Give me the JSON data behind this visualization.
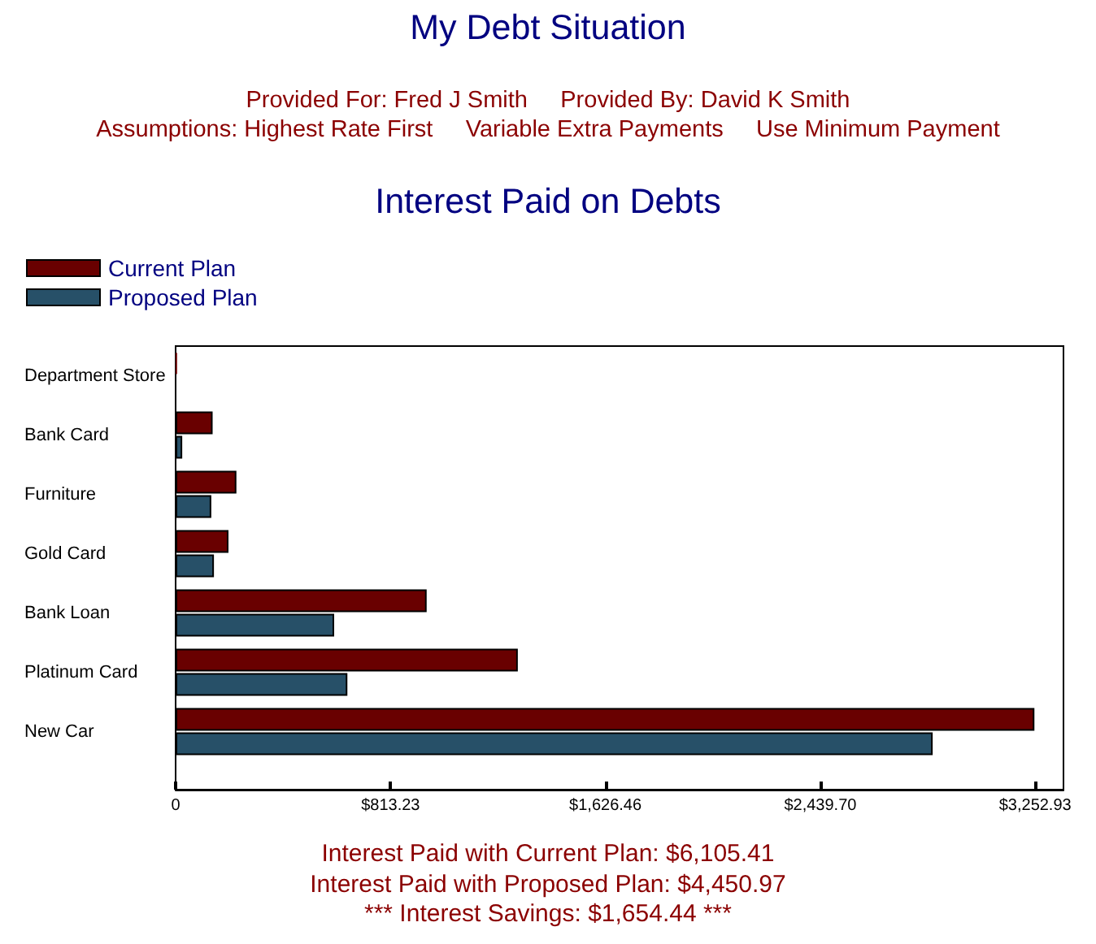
{
  "chart_data": {
    "type": "bar",
    "orientation": "horizontal",
    "title": "My Debt Situation",
    "subtitle": "Interest Paid on Debts",
    "annotations": [
      "Provided For: Fred J Smith     Provided By: David K Smith\nAssumptions: Highest Rate First     Variable Extra Payments     Use Minimum Payment",
      "Interest Paid with Current Plan: $6,105.41\nInterest Paid with Proposed Plan: $4,450.97\n*** Interest Savings: $1,654.44 ***"
    ],
    "categories": [
      "Department Store",
      "Bank Card",
      "Furniture",
      "Gold Card",
      "Bank Loan",
      "Platinum Card",
      "New Car"
    ],
    "series": [
      {
        "name": "Current Plan",
        "color": "#690000",
        "values": [
          5,
          140,
          230,
          200,
          950,
          1295,
          3250
        ]
      },
      {
        "name": "Proposed Plan",
        "color": "#275068",
        "values": [
          null,
          25,
          135,
          145,
          600,
          650,
          2865
        ]
      }
    ],
    "xlim": [
      0,
      3360
    ],
    "xticks": [
      0,
      {
        "value": 813.23,
        "label": "$813.23"
      },
      {
        "value": 1626.46,
        "label": "$1,626.46"
      },
      {
        "value": 2439.7,
        "label": "$2,439.70"
      },
      {
        "value": 3252.93,
        "label": "$3,252.93"
      }
    ],
    "legend": "top left"
  }
}
